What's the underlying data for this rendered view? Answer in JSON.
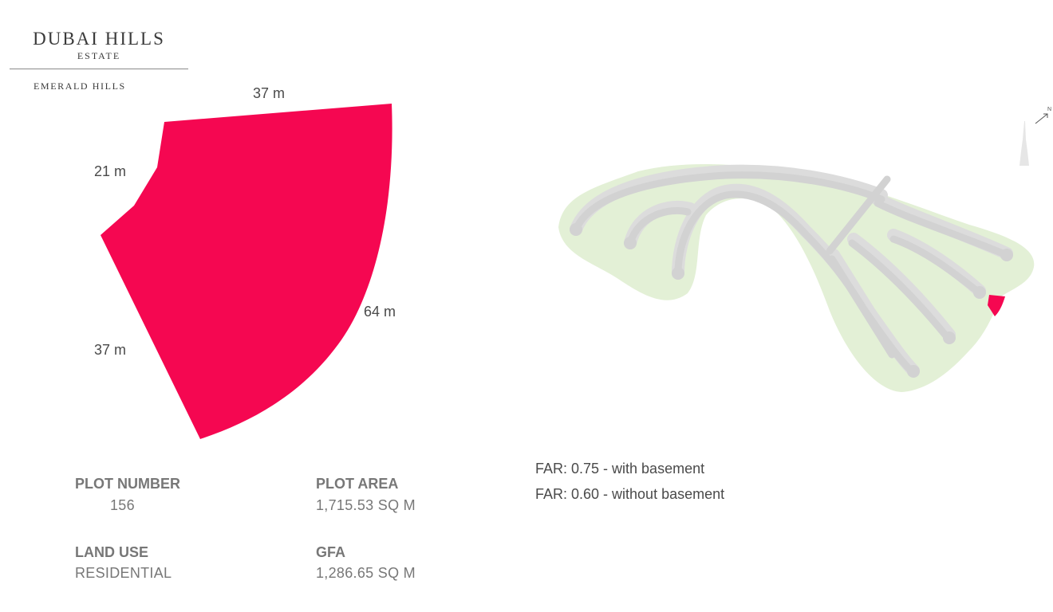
{
  "brand": {
    "name": "DUBAI HILLS",
    "subtitle": "ESTATE",
    "project": "EMERALD HILLS"
  },
  "plot_dimensions": {
    "top": "37 m",
    "upper_left": "21 m",
    "lower_left": "37 m",
    "right_curve": "64 m"
  },
  "plot_info": {
    "plot_number_label": "PLOT NUMBER",
    "plot_number_value": "156",
    "plot_area_label": "PLOT AREA",
    "plot_area_value": "1,715.53 SQ M",
    "land_use_label": "LAND USE",
    "land_use_value": "RESIDENTIAL",
    "gfa_label": "GFA",
    "gfa_value": "1,286.65 SQ M"
  },
  "far": {
    "with_basement": "FAR: 0.75 - with basement",
    "without_basement": "FAR: 0.60 - without basement"
  },
  "compass": {
    "north_label": "N"
  },
  "colors": {
    "plot": "#f50751",
    "greenery": "#e3f0d6",
    "road": "#d9d9d9",
    "road_edge": "#c4c4c4"
  }
}
